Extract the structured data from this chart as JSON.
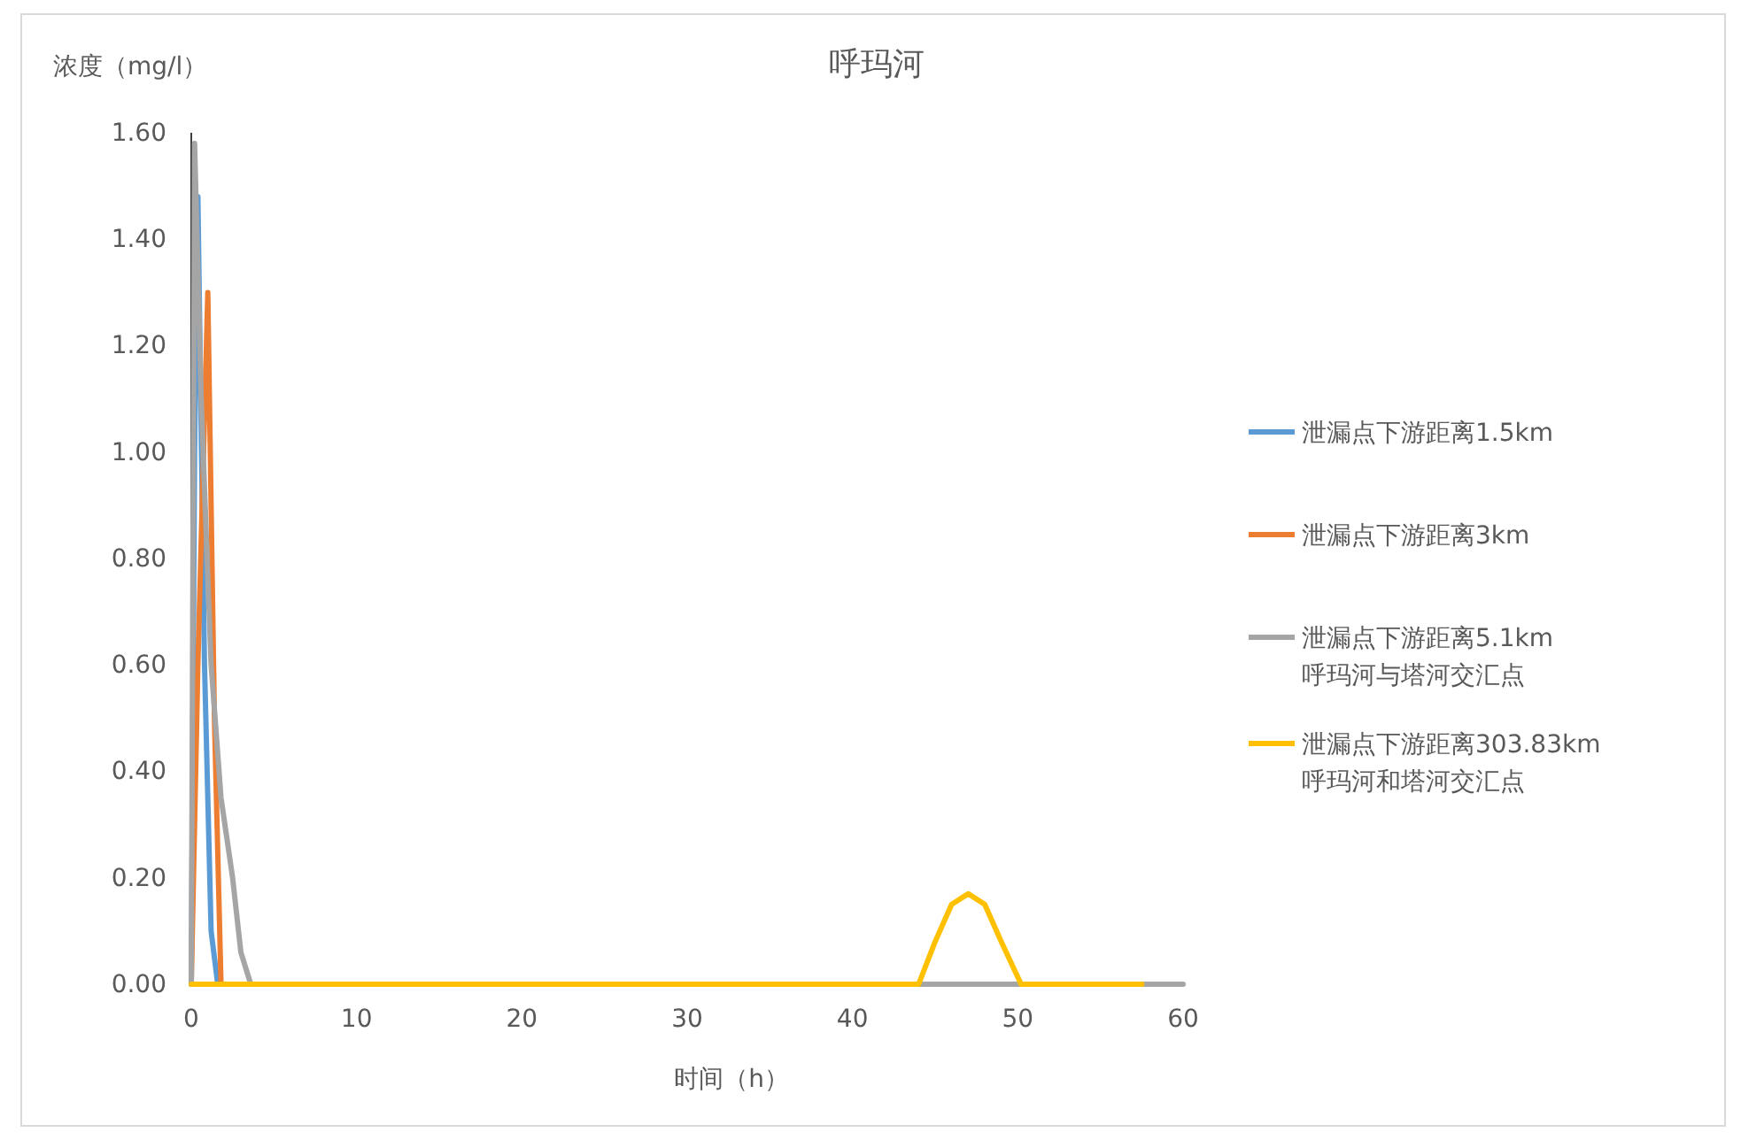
{
  "chart_data": {
    "type": "line",
    "title": "呼玛河",
    "xlabel": "时间（h）",
    "ylabel": "浓度（mg/l）",
    "xlim": [
      0,
      60
    ],
    "xticks": [
      0,
      10,
      20,
      30,
      40,
      50,
      60
    ],
    "ylim": [
      0,
      1.6
    ],
    "yticks": [
      {
        "value": 0,
        "label": "0.00"
      },
      {
        "value": 0.2,
        "label": "0.20"
      },
      {
        "value": 0.4,
        "label": "0.40"
      },
      {
        "value": 0.6,
        "label": "0.60"
      },
      {
        "value": 0.8,
        "label": "0.80"
      },
      {
        "value": 1.0,
        "label": "1.00"
      },
      {
        "value": 1.2,
        "label": "1.20"
      },
      {
        "value": 1.4,
        "label": "1.40"
      },
      {
        "value": 1.6,
        "label": "1.60"
      }
    ],
    "grid": false,
    "legend": "right",
    "series": [
      {
        "name": "泄漏点下游距离1.5km",
        "color": "#5b9bd5",
        "x": [
          0,
          0.2,
          0.4,
          0.8,
          1.2,
          1.6
        ],
        "values": [
          0,
          1.0,
          1.48,
          0.6,
          0.1,
          0
        ]
      },
      {
        "name": "泄漏点下游距离3km",
        "color": "#ed7d31",
        "x": [
          0,
          0.4,
          1.0,
          1.4,
          1.8
        ],
        "values": [
          0,
          0.6,
          1.3,
          0.5,
          0
        ]
      },
      {
        "name": "泄漏点下游距离5.1km\n呼玛河与塔河交汇点",
        "color": "#a5a5a5",
        "x": [
          0,
          0.2,
          0.6,
          1.2,
          1.8,
          2.5,
          3.0,
          3.6,
          60
        ],
        "values": [
          0,
          1.58,
          1.1,
          0.6,
          0.35,
          0.2,
          0.06,
          0,
          0
        ]
      },
      {
        "name": "泄漏点下游距离303.83km\n呼玛河和塔河交汇点",
        "color": "#ffc000",
        "x": [
          0,
          44,
          45,
          46,
          47,
          48,
          49,
          50.2,
          57.5
        ],
        "values": [
          0,
          0,
          0.08,
          0.15,
          0.17,
          0.15,
          0.08,
          0,
          0
        ]
      }
    ]
  }
}
